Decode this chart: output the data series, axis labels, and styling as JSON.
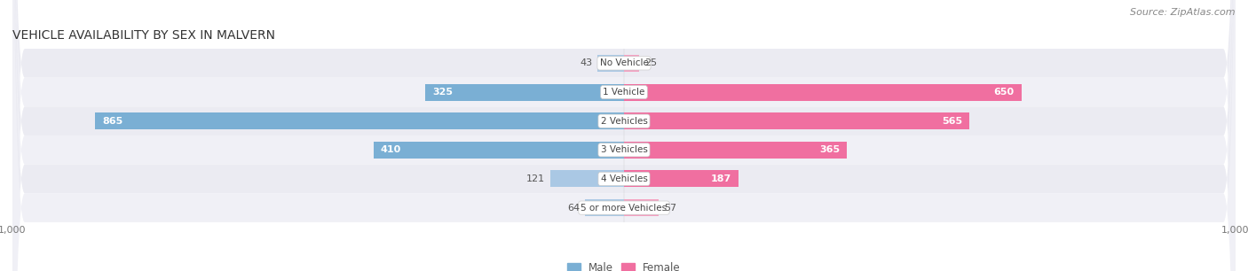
{
  "title": "VEHICLE AVAILABILITY BY SEX IN MALVERN",
  "source": "Source: ZipAtlas.com",
  "categories": [
    "No Vehicle",
    "1 Vehicle",
    "2 Vehicles",
    "3 Vehicles",
    "4 Vehicles",
    "5 or more Vehicles"
  ],
  "male_values": [
    43,
    325,
    865,
    410,
    121,
    64
  ],
  "female_values": [
    25,
    650,
    565,
    365,
    187,
    57
  ],
  "male_color": "#7aafd4",
  "female_color": "#f06fa0",
  "male_color_light": "#aac8e4",
  "female_color_light": "#f4a0c0",
  "row_bg_color": "#ebebf0",
  "row_bg_color2": "#f5f5fa",
  "label_bg_color": "#ffffff",
  "xlim": 1000,
  "bar_height": 0.58,
  "figsize": [
    14.06,
    3.06
  ],
  "dpi": 100,
  "title_fontsize": 10,
  "source_fontsize": 8,
  "label_fontsize": 7.5,
  "value_fontsize": 8,
  "axis_fontsize": 8,
  "legend_fontsize": 8.5,
  "value_threshold": 130
}
